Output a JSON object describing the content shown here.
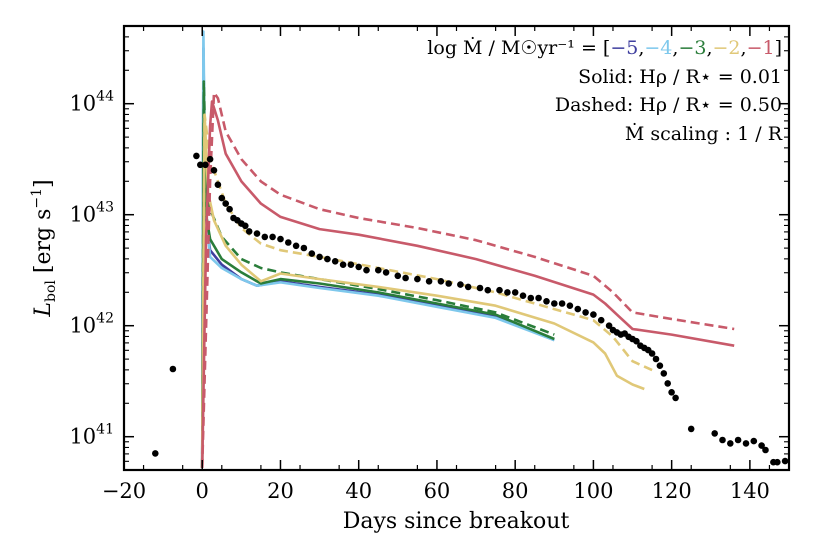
{
  "chart_data": {
    "type": "line",
    "xlabel": "Days since breakout",
    "ylabel": "L_bol [erg s^-1]",
    "ylabel_main": "L",
    "ylabel_sub": "bol",
    "ylabel_unit_open": " [erg s",
    "ylabel_unit_exp": "−1",
    "ylabel_unit_close": "]",
    "xlim": [
      -20,
      150
    ],
    "ylim_log10": [
      40.7,
      44.7
    ],
    "yscale": "log",
    "xticks": [
      -20,
      0,
      20,
      40,
      60,
      80,
      100,
      120,
      140
    ],
    "xtick_labels": [
      "−20",
      "0",
      "20",
      "40",
      "60",
      "80",
      "100",
      "120",
      "140"
    ],
    "yticks_log10": [
      41,
      42,
      43,
      44
    ],
    "ytick_labels": [
      {
        "base": "10",
        "exp": "41"
      },
      {
        "base": "10",
        "exp": "42"
      },
      {
        "base": "10",
        "exp": "43"
      },
      {
        "base": "10",
        "exp": "44"
      }
    ],
    "legend": {
      "position": "top-right",
      "line1_prefix": "log Ṁ / M☉yr⁻¹ = [",
      "line1_values": [
        {
          "text": "−5",
          "color": "#3f3f9f"
        },
        {
          "text": "−4",
          "color": "#7ec8ec"
        },
        {
          "text": "−3",
          "color": "#2a7d3a"
        },
        {
          "text": "−2",
          "color": "#e0c878"
        },
        {
          "text": "−1",
          "color": "#c85a6a"
        }
      ],
      "line1_suffix": "]",
      "line2": "Solid: Hρ / R⋆ = 0.01",
      "line3": "Dashed: Hρ / R⋆ = 0.50",
      "line4": "Ṁ scaling : 1 / R"
    },
    "series": [
      {
        "name": "logMdot=-5 solid",
        "color": "#3f3f9f",
        "dash": false,
        "points": [
          [
            0,
            40.72
          ],
          [
            0.3,
            44.5
          ],
          [
            0.8,
            43.0
          ],
          [
            2,
            42.68
          ],
          [
            5,
            42.55
          ],
          [
            10,
            42.42
          ],
          [
            14,
            42.36
          ],
          [
            20,
            42.4
          ],
          [
            30,
            42.35
          ],
          [
            45,
            42.28
          ],
          [
            60,
            42.18
          ],
          [
            75,
            42.08
          ],
          [
            90,
            41.87
          ]
        ]
      },
      {
        "name": "logMdot=-4 solid",
        "color": "#7ec8ec",
        "dash": false,
        "points": [
          [
            0,
            40.72
          ],
          [
            0.3,
            44.65
          ],
          [
            0.8,
            43.1
          ],
          [
            2,
            42.62
          ],
          [
            5,
            42.52
          ],
          [
            10,
            42.42
          ],
          [
            14,
            42.36
          ],
          [
            20,
            42.39
          ],
          [
            30,
            42.34
          ],
          [
            45,
            42.27
          ],
          [
            60,
            42.17
          ],
          [
            75,
            42.07
          ],
          [
            90,
            41.87
          ]
        ]
      },
      {
        "name": "logMdot=-3 solid",
        "color": "#2a7d3a",
        "dash": false,
        "points": [
          [
            0,
            40.72
          ],
          [
            0.4,
            44.1
          ],
          [
            1,
            43.0
          ],
          [
            2,
            42.78
          ],
          [
            5,
            42.6
          ],
          [
            10,
            42.48
          ],
          [
            15,
            42.38
          ],
          [
            20,
            42.42
          ],
          [
            30,
            42.38
          ],
          [
            45,
            42.3
          ],
          [
            60,
            42.2
          ],
          [
            75,
            42.1
          ],
          [
            90,
            41.88
          ]
        ]
      },
      {
        "name": "logMdot=-3 dashed",
        "color": "#2a7d3a",
        "dash": true,
        "points": [
          [
            0,
            40.72
          ],
          [
            0.4,
            44.2
          ],
          [
            1,
            43.3
          ],
          [
            2,
            43.05
          ],
          [
            5,
            42.8
          ],
          [
            10,
            42.6
          ],
          [
            15,
            42.52
          ],
          [
            20,
            42.48
          ],
          [
            30,
            42.42
          ],
          [
            45,
            42.33
          ],
          [
            60,
            42.23
          ],
          [
            75,
            42.12
          ],
          [
            90,
            41.92
          ]
        ]
      },
      {
        "name": "logMdot=-2 solid",
        "color": "#e0c878",
        "dash": false,
        "points": [
          [
            0,
            40.72
          ],
          [
            0.6,
            43.9
          ],
          [
            1.5,
            43.2
          ],
          [
            3,
            42.95
          ],
          [
            6,
            42.72
          ],
          [
            10,
            42.55
          ],
          [
            15,
            42.4
          ],
          [
            20,
            42.47
          ],
          [
            30,
            42.42
          ],
          [
            45,
            42.35
          ],
          [
            60,
            42.27
          ],
          [
            75,
            42.18
          ],
          [
            90,
            42.02
          ],
          [
            100,
            41.85
          ],
          [
            103,
            41.75
          ],
          [
            106,
            41.55
          ],
          [
            110,
            41.47
          ],
          [
            113,
            41.43
          ]
        ]
      },
      {
        "name": "logMdot=-2 dashed",
        "color": "#e0c878",
        "dash": true,
        "points": [
          [
            0,
            40.72
          ],
          [
            0.6,
            43.9
          ],
          [
            2,
            43.5
          ],
          [
            4,
            43.3
          ],
          [
            6,
            43.1
          ],
          [
            10,
            42.88
          ],
          [
            15,
            42.74
          ],
          [
            20,
            42.68
          ],
          [
            30,
            42.62
          ],
          [
            45,
            42.52
          ],
          [
            60,
            42.42
          ],
          [
            75,
            42.3
          ],
          [
            90,
            42.15
          ],
          [
            100,
            42.05
          ],
          [
            105,
            41.9
          ],
          [
            110,
            41.68
          ],
          [
            115,
            41.6
          ]
        ]
      },
      {
        "name": "logMdot=-1 solid",
        "color": "#c85a6a",
        "dash": false,
        "points": [
          [
            0,
            40.72
          ],
          [
            1,
            42.8
          ],
          [
            2,
            43.8
          ],
          [
            2.5,
            44.02
          ],
          [
            4,
            43.85
          ],
          [
            6,
            43.55
          ],
          [
            10,
            43.3
          ],
          [
            15,
            43.1
          ],
          [
            20,
            42.98
          ],
          [
            30,
            42.87
          ],
          [
            40,
            42.82
          ],
          [
            55,
            42.72
          ],
          [
            70,
            42.6
          ],
          [
            85,
            42.45
          ],
          [
            100,
            42.28
          ],
          [
            103,
            42.2
          ],
          [
            106,
            42.1
          ],
          [
            110,
            41.97
          ],
          [
            120,
            41.92
          ],
          [
            136,
            41.82
          ]
        ]
      },
      {
        "name": "logMdot=-1 dashed",
        "color": "#c85a6a",
        "dash": true,
        "points": [
          [
            0,
            40.72
          ],
          [
            1,
            42.0
          ],
          [
            2,
            43.3
          ],
          [
            3,
            44.1
          ],
          [
            4,
            44.05
          ],
          [
            6,
            43.75
          ],
          [
            10,
            43.5
          ],
          [
            15,
            43.3
          ],
          [
            20,
            43.18
          ],
          [
            30,
            43.05
          ],
          [
            40,
            42.97
          ],
          [
            55,
            42.88
          ],
          [
            70,
            42.77
          ],
          [
            85,
            42.62
          ],
          [
            100,
            42.45
          ],
          [
            105,
            42.3
          ],
          [
            110,
            42.12
          ],
          [
            120,
            42.06
          ],
          [
            136,
            41.97
          ]
        ]
      }
    ],
    "observations": {
      "color": "#000000",
      "points": [
        [
          -12,
          40.85
        ],
        [
          -7.5,
          41.61
        ],
        [
          -1.5,
          43.53
        ],
        [
          -0.5,
          43.45
        ],
        [
          0.8,
          43.45
        ],
        [
          2,
          43.5
        ],
        [
          3,
          43.4
        ],
        [
          4,
          43.27
        ],
        [
          5,
          43.15
        ],
        [
          6,
          43.1
        ],
        [
          7,
          43.05
        ],
        [
          8,
          42.97
        ],
        [
          9,
          42.95
        ],
        [
          10,
          42.92
        ],
        [
          11,
          42.9
        ],
        [
          12,
          42.85
        ],
        [
          14,
          42.83
        ],
        [
          16,
          42.8
        ],
        [
          18,
          42.8
        ],
        [
          20,
          42.78
        ],
        [
          22,
          42.75
        ],
        [
          24,
          42.72
        ],
        [
          26,
          42.7
        ],
        [
          28,
          42.65
        ],
        [
          30,
          42.62
        ],
        [
          32,
          42.6
        ],
        [
          34,
          42.58
        ],
        [
          36,
          42.55
        ],
        [
          38,
          42.55
        ],
        [
          40,
          42.53
        ],
        [
          42,
          42.5
        ],
        [
          45,
          42.5
        ],
        [
          47,
          42.48
        ],
        [
          50,
          42.45
        ],
        [
          52,
          42.43
        ],
        [
          55,
          42.42
        ],
        [
          58,
          42.4
        ],
        [
          61,
          42.4
        ],
        [
          63,
          42.38
        ],
        [
          66,
          42.37
        ],
        [
          68,
          42.35
        ],
        [
          71,
          42.34
        ],
        [
          73,
          42.32
        ],
        [
          76,
          42.32
        ],
        [
          78,
          42.3
        ],
        [
          80,
          42.3
        ],
        [
          82,
          42.27
        ],
        [
          84,
          42.25
        ],
        [
          86,
          42.25
        ],
        [
          88,
          42.22
        ],
        [
          90,
          42.2
        ],
        [
          92,
          42.2
        ],
        [
          94,
          42.18
        ],
        [
          96,
          42.15
        ],
        [
          98,
          42.12
        ],
        [
          100,
          42.1
        ],
        [
          102,
          42.05
        ],
        [
          104,
          42.0
        ],
        [
          105,
          41.96
        ],
        [
          106,
          41.94
        ],
        [
          107,
          41.92
        ],
        [
          108,
          41.93
        ],
        [
          109,
          41.9
        ],
        [
          110,
          41.88
        ],
        [
          111,
          41.86
        ],
        [
          112,
          41.82
        ],
        [
          113,
          41.8
        ],
        [
          114,
          41.78
        ],
        [
          115,
          41.75
        ],
        [
          116,
          41.7
        ],
        [
          117,
          41.64
        ],
        [
          118,
          41.57
        ],
        [
          119,
          41.48
        ],
        [
          120,
          41.4
        ],
        [
          121,
          41.35
        ],
        [
          125,
          41.07
        ],
        [
          131,
          41.03
        ],
        [
          133,
          40.97
        ],
        [
          135,
          40.94
        ],
        [
          137,
          40.97
        ],
        [
          139,
          40.94
        ],
        [
          141,
          40.96
        ],
        [
          143,
          40.92
        ],
        [
          144,
          40.88
        ],
        [
          146,
          40.77
        ],
        [
          147,
          40.77
        ],
        [
          149,
          40.78
        ]
      ]
    }
  }
}
